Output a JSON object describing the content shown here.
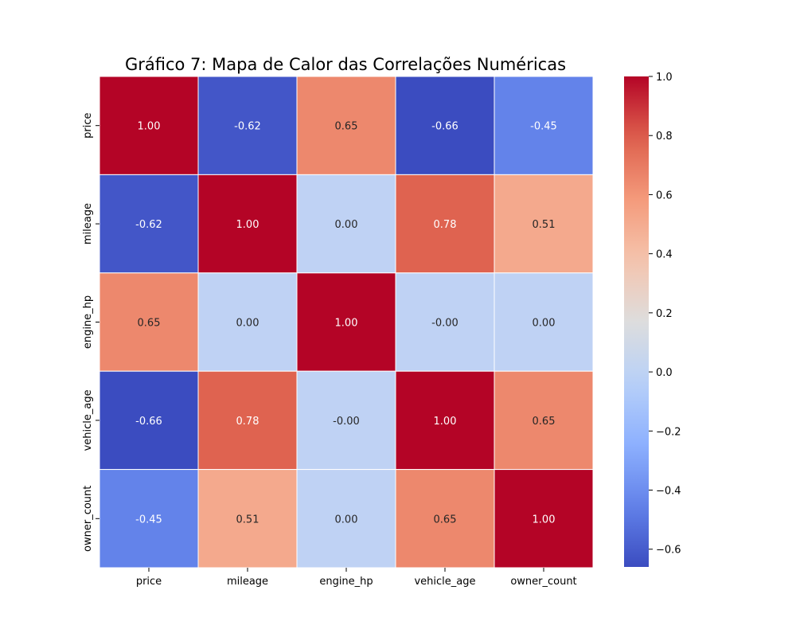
{
  "chart_data": {
    "type": "heatmap",
    "title": "Gráfico 7: Mapa de Calor das Correlações Numéricas",
    "x_labels": [
      "price",
      "mileage",
      "engine_hp",
      "vehicle_age",
      "owner_count"
    ],
    "y_labels": [
      "price",
      "mileage",
      "engine_hp",
      "vehicle_age",
      "owner_count"
    ],
    "values": [
      [
        1.0,
        -0.62,
        0.65,
        -0.66,
        -0.45
      ],
      [
        -0.62,
        1.0,
        0.0,
        0.78,
        0.51
      ],
      [
        0.65,
        0.0,
        1.0,
        -0.0,
        0.0
      ],
      [
        -0.66,
        0.78,
        -0.0,
        1.0,
        0.65
      ],
      [
        -0.45,
        0.51,
        0.0,
        0.65,
        1.0
      ]
    ],
    "cell_labels": [
      [
        "1.00",
        "-0.62",
        "0.65",
        "-0.66",
        "-0.45"
      ],
      [
        "-0.62",
        "1.00",
        "0.00",
        "0.78",
        "0.51"
      ],
      [
        "0.65",
        "0.00",
        "1.00",
        "-0.00",
        "0.00"
      ],
      [
        "-0.66",
        "0.78",
        "-0.00",
        "1.00",
        "0.65"
      ],
      [
        "-0.45",
        "0.51",
        "0.00",
        "0.65",
        "1.00"
      ]
    ],
    "colormap": "coolwarm",
    "color_range": [
      -0.66,
      1.0
    ],
    "colorbar_ticks": [
      1.0,
      0.8,
      0.6,
      0.4,
      0.2,
      0.0,
      -0.2,
      -0.4,
      -0.6
    ],
    "colorbar_tick_labels": [
      "1.0",
      "0.8",
      "0.6",
      "0.4",
      "0.2",
      "0.0",
      "−0.2",
      "−0.4",
      "−0.6"
    ],
    "colorbar_placement": "right",
    "cell_borders": "white",
    "grid": false
  }
}
